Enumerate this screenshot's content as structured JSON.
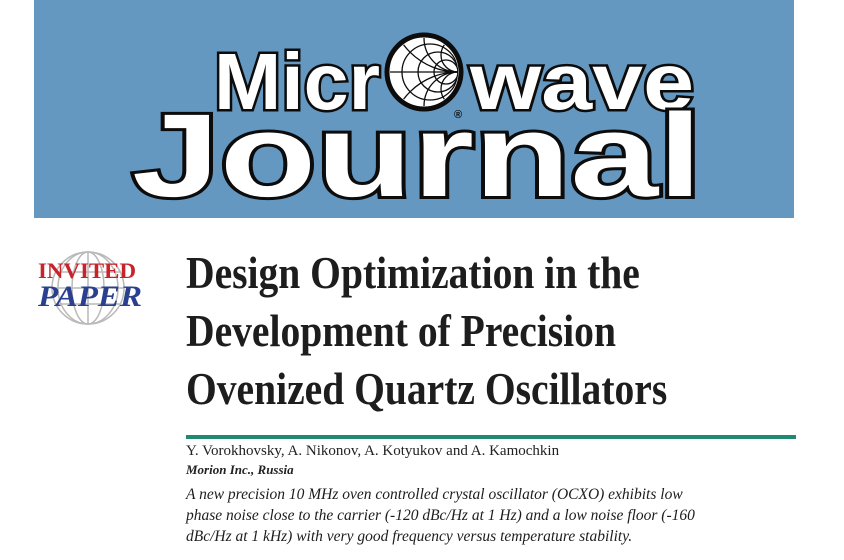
{
  "masthead": {
    "line1_left": "Micr",
    "line1_right": "wave",
    "registered_mark": "®",
    "line2": "Journal",
    "colors": {
      "banner": "#6598c0",
      "letters": "#ffffff",
      "outline": "#0c0c0c"
    }
  },
  "badge": {
    "line1": "INVITED",
    "line2": "PAPER",
    "colors": {
      "invited": "#c8232b",
      "paper": "#2a3f8f",
      "globe": "#b9b9b9"
    }
  },
  "article": {
    "title_lines": [
      "Design Optimization in the",
      "Development of Precision",
      "Ovenized Quartz Oscillators"
    ],
    "authors": "Y. Vorokhovsky, A. Nikonov, A. Kotyukov and A. Kamochkin",
    "affiliation": "Morion Inc., Russia",
    "abstract_lines": [
      "A new precision 10 MHz oven controlled crystal oscillator (OCXO) exhibits low",
      "phase noise close to the carrier (-120 dBc/Hz at 1 Hz) and a low noise floor (-160",
      "dBc/Hz at 1 kHz) with very good frequency versus temperature stability."
    ],
    "rule_color": "#1f8a70"
  }
}
